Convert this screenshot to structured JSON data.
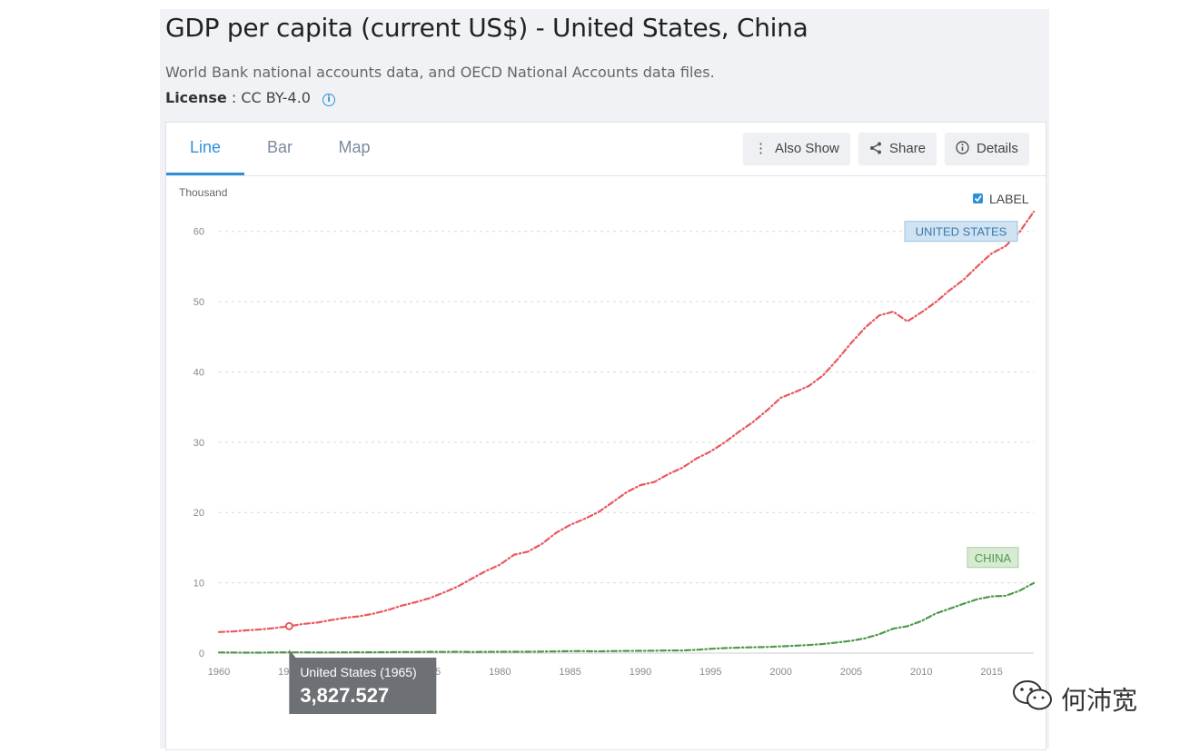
{
  "header": {
    "title": "GDP per capita (current US$) - United States, China",
    "source": "World Bank national accounts data, and OECD National Accounts data files.",
    "license_label": "License",
    "license_value": ": CC BY-4.0"
  },
  "tabs": [
    {
      "label": "Line",
      "active": true
    },
    {
      "label": "Bar",
      "active": false
    },
    {
      "label": "Map",
      "active": false
    }
  ],
  "toolbar": {
    "also_show_label": "Also Show",
    "share_label": "Share",
    "details_label": "Details"
  },
  "label_toggle": {
    "label": "LABEL",
    "checked": true
  },
  "tooltip": {
    "title": "United States (1965)",
    "value": "3,827.527"
  },
  "watermark": {
    "text": "何沛宽"
  },
  "colors": {
    "accent": "#2f8fd8",
    "us": "#e8585e",
    "china": "#4e9a49"
  },
  "chart_data": {
    "type": "line",
    "ylabel": "Thousand",
    "ylim": [
      0,
      65
    ],
    "yticks": [
      0,
      10,
      20,
      30,
      40,
      50,
      60
    ],
    "xlim": [
      1960,
      2018
    ],
    "xticks": [
      1960,
      1965,
      1970,
      1975,
      1980,
      1985,
      1990,
      1995,
      2000,
      2005,
      2010,
      2015
    ],
    "grid": true,
    "line_style": "dash-dot",
    "x": [
      1960,
      1961,
      1962,
      1963,
      1964,
      1965,
      1966,
      1967,
      1968,
      1969,
      1970,
      1971,
      1972,
      1973,
      1974,
      1975,
      1976,
      1977,
      1978,
      1979,
      1980,
      1981,
      1982,
      1983,
      1984,
      1985,
      1986,
      1987,
      1988,
      1989,
      1990,
      1991,
      1992,
      1993,
      1994,
      1995,
      1996,
      1997,
      1998,
      1999,
      2000,
      2001,
      2002,
      2003,
      2004,
      2005,
      2006,
      2007,
      2008,
      2009,
      2010,
      2011,
      2012,
      2013,
      2014,
      2015,
      2016,
      2017,
      2018
    ],
    "series": [
      {
        "name": "UNITED STATES",
        "color": "#e8585e",
        "values": [
          3.0,
          3.07,
          3.24,
          3.37,
          3.57,
          3.83,
          4.15,
          4.34,
          4.7,
          5.03,
          5.23,
          5.61,
          6.11,
          6.74,
          7.24,
          7.82,
          8.61,
          9.47,
          10.59,
          11.67,
          12.58,
          13.98,
          14.43,
          15.54,
          17.12,
          18.24,
          19.07,
          20.04,
          21.42,
          22.86,
          23.89,
          24.34,
          25.47,
          26.39,
          27.69,
          28.69,
          29.97,
          31.46,
          32.85,
          34.51,
          36.33,
          37.13,
          38.02,
          39.5,
          41.72,
          44.11,
          46.3,
          48.05,
          48.57,
          47.19,
          48.47,
          49.89,
          51.6,
          53.11,
          55.05,
          56.86,
          57.9,
          59.93,
          62.8
        ]
      },
      {
        "name": "CHINA",
        "color": "#4e9a49",
        "values": [
          0.09,
          0.08,
          0.07,
          0.07,
          0.09,
          0.1,
          0.1,
          0.09,
          0.09,
          0.1,
          0.11,
          0.12,
          0.13,
          0.16,
          0.16,
          0.18,
          0.17,
          0.19,
          0.16,
          0.18,
          0.19,
          0.2,
          0.2,
          0.22,
          0.25,
          0.29,
          0.28,
          0.25,
          0.28,
          0.31,
          0.32,
          0.33,
          0.37,
          0.38,
          0.47,
          0.61,
          0.71,
          0.78,
          0.83,
          0.87,
          0.96,
          1.05,
          1.15,
          1.29,
          1.51,
          1.75,
          2.1,
          2.69,
          3.47,
          3.83,
          4.55,
          5.61,
          6.3,
          7.02,
          7.68,
          8.07,
          8.15,
          8.88,
          9.98
        ]
      }
    ],
    "series_labels": [
      "UNITED STATES",
      "CHINA"
    ],
    "legend_placement": "inline-right"
  }
}
